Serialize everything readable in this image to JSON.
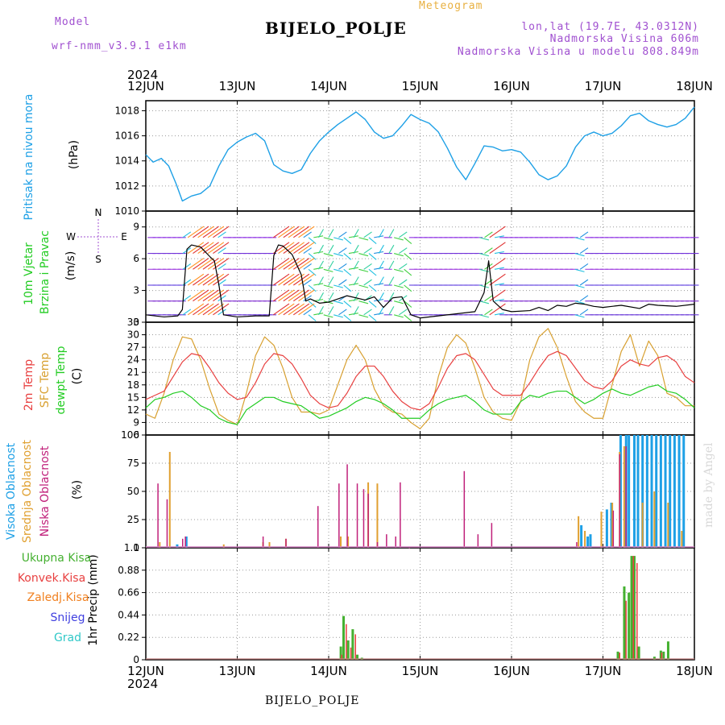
{
  "header": {
    "model_label": "Model",
    "model_name": "wrf-nmm_v3.9.1 e1km",
    "title": "Meteogram",
    "station": "BIJELO_POLJE",
    "lonlat": "lon,lat (19.7E, 43.0312N)",
    "elevation": "Nadmorska Visina 606m",
    "model_elevation": "Nadmorska Visina u modelu 808.849m",
    "credit": "made by Angel",
    "footer_station": "BIJELO_POLJE"
  },
  "colors": {
    "pressure": "#1ea0e6",
    "t2m": "#e84040",
    "sfc": "#d8a030",
    "dewpt": "#22cc22",
    "high": "#1ea0e6",
    "mid": "#e0a030",
    "low": "#c0207a",
    "total": "#44b030",
    "conv": "#e84040",
    "frozen": "#f08020",
    "snow": "#4040e0",
    "hail": "#30c8c8",
    "purple": "#a050d0"
  },
  "chart_data": [
    {
      "type": "line",
      "panel": "pressure",
      "top_year": "2024",
      "bottom_year": "2024",
      "days": [
        "12JUN",
        "13JUN",
        "14JUN",
        "15JUN",
        "16JUN",
        "17JUN",
        "18JUN"
      ],
      "ylabel": "Pritisak na nivou mora",
      "unit": "(hPa)",
      "yticks": [
        1010,
        1012,
        1014,
        1016,
        1018
      ],
      "ylim": [
        1010,
        1018.8
      ],
      "series": [
        {
          "name": "Pritisak na nivou mora",
          "x": [
            0,
            0.08,
            0.17,
            0.25,
            0.33,
            0.4,
            0.5,
            0.6,
            0.7,
            0.8,
            0.9,
            1.0,
            1.1,
            1.2,
            1.3,
            1.4,
            1.5,
            1.6,
            1.7,
            1.8,
            1.9,
            2.0,
            2.1,
            2.2,
            2.3,
            2.4,
            2.5,
            2.6,
            2.7,
            2.8,
            2.9,
            3.0,
            3.1,
            3.2,
            3.3,
            3.4,
            3.5,
            3.6,
            3.7,
            3.8,
            3.9,
            4.0,
            4.1,
            4.2,
            4.3,
            4.4,
            4.5,
            4.6,
            4.7,
            4.8,
            4.9,
            5.0,
            5.1,
            5.2,
            5.3,
            5.4,
            5.5,
            5.6,
            5.7,
            5.8,
            5.9,
            6.0
          ],
          "values": [
            1014.5,
            1013.9,
            1014.2,
            1013.6,
            1012.2,
            1010.8,
            1011.2,
            1011.4,
            1012.0,
            1013.6,
            1014.9,
            1015.5,
            1015.9,
            1016.2,
            1015.6,
            1013.7,
            1013.2,
            1013.0,
            1013.3,
            1014.6,
            1015.6,
            1016.3,
            1016.9,
            1017.4,
            1017.9,
            1017.3,
            1016.3,
            1015.8,
            1016.0,
            1016.8,
            1017.7,
            1017.3,
            1017.0,
            1016.3,
            1015.0,
            1013.5,
            1012.5,
            1013.8,
            1015.2,
            1015.1,
            1014.8,
            1014.9,
            1014.7,
            1013.9,
            1012.9,
            1012.5,
            1012.8,
            1013.6,
            1015.1,
            1016.0,
            1016.3,
            1016.0,
            1016.2,
            1016.8,
            1017.6,
            1017.8,
            1017.2,
            1016.9,
            1016.7,
            1016.9,
            1017.4,
            1018.3
          ]
        }
      ]
    },
    {
      "type": "line",
      "panel": "wind",
      "ylabel": "10m Vjetar Brzina i Pravac",
      "unit": "(m/s)",
      "yticks": [
        0,
        3,
        6,
        9
      ],
      "ylim": [
        0,
        10.5
      ],
      "compass": [
        "N",
        "S",
        "W",
        "E"
      ],
      "series": [
        {
          "name": "10m Vjetar",
          "x": [
            0,
            0.2,
            0.35,
            0.4,
            0.45,
            0.5,
            0.6,
            0.7,
            0.75,
            0.8,
            0.85,
            1.0,
            1.2,
            1.35,
            1.4,
            1.45,
            1.5,
            1.6,
            1.7,
            1.75,
            1.8,
            1.9,
            2.0,
            2.2,
            2.4,
            2.5,
            2.6,
            2.7,
            2.8,
            2.9,
            3.0,
            3.2,
            3.4,
            3.6,
            3.7,
            3.75,
            3.8,
            3.9,
            4.0,
            4.2,
            4.3,
            4.4,
            4.5,
            4.6,
            4.7,
            4.8,
            4.9,
            5.0,
            5.2,
            5.4,
            5.5,
            5.6,
            5.8,
            6.0
          ],
          "values": [
            0.7,
            0.5,
            0.6,
            1.2,
            6.9,
            7.3,
            7.1,
            6.2,
            5.8,
            3.5,
            0.7,
            0.5,
            0.6,
            0.6,
            6.3,
            7.3,
            7.2,
            6.4,
            4.5,
            2.0,
            2.2,
            1.8,
            1.9,
            2.5,
            2.1,
            2.4,
            1.4,
            2.3,
            2.4,
            0.7,
            0.4,
            0.6,
            0.8,
            1.0,
            2.8,
            5.8,
            2.0,
            1.2,
            1.0,
            1.1,
            1.4,
            1.1,
            1.6,
            1.5,
            1.8,
            1.7,
            1.5,
            1.4,
            1.6,
            1.3,
            1.7,
            1.6,
            1.5,
            1.7
          ]
        }
      ]
    },
    {
      "type": "line",
      "panel": "temperature",
      "ylabels": [
        "2m Temp",
        "SFC Temp",
        "dewpt Temp"
      ],
      "unit": "(C)",
      "yticks": [
        6,
        9,
        12,
        15,
        18,
        21,
        24,
        27,
        30,
        33
      ],
      "ylim": [
        6,
        33
      ],
      "series": [
        {
          "name": "2m Temp",
          "x": [
            0,
            0.1,
            0.2,
            0.3,
            0.4,
            0.5,
            0.6,
            0.7,
            0.8,
            0.9,
            1.0,
            1.1,
            1.2,
            1.3,
            1.4,
            1.5,
            1.6,
            1.7,
            1.8,
            1.9,
            2.0,
            2.1,
            2.2,
            2.3,
            2.4,
            2.5,
            2.6,
            2.7,
            2.8,
            2.9,
            3.0,
            3.1,
            3.2,
            3.3,
            3.4,
            3.5,
            3.6,
            3.7,
            3.8,
            3.9,
            4.0,
            4.1,
            4.2,
            4.3,
            4.4,
            4.5,
            4.6,
            4.7,
            4.8,
            4.9,
            5.0,
            5.1,
            5.2,
            5.3,
            5.4,
            5.5,
            5.6,
            5.7,
            5.8,
            5.9,
            6.0
          ],
          "values": [
            14.5,
            15.5,
            16.5,
            20,
            23.5,
            25.5,
            25,
            22,
            18.5,
            16,
            14.5,
            15,
            18.5,
            23,
            25.5,
            25,
            23,
            19.5,
            15.5,
            13.5,
            12.5,
            13,
            16,
            20,
            22.5,
            22.5,
            20,
            16.5,
            14,
            12.5,
            12,
            13.5,
            17.5,
            22,
            25,
            25.5,
            24,
            20.5,
            17,
            15.5,
            15.5,
            15.5,
            18.5,
            22,
            25,
            26,
            25,
            22,
            19,
            17.5,
            17,
            19,
            22.5,
            24,
            23,
            22.5,
            24.5,
            25,
            23.5,
            20,
            18.5
          ]
        },
        {
          "name": "SFC Temp",
          "x": [
            0,
            0.1,
            0.2,
            0.3,
            0.4,
            0.5,
            0.6,
            0.7,
            0.8,
            0.9,
            1.0,
            1.1,
            1.2,
            1.3,
            1.4,
            1.5,
            1.6,
            1.7,
            1.8,
            1.9,
            2.0,
            2.1,
            2.2,
            2.3,
            2.4,
            2.5,
            2.6,
            2.7,
            2.8,
            2.9,
            3.0,
            3.1,
            3.2,
            3.3,
            3.4,
            3.5,
            3.6,
            3.7,
            3.8,
            3.9,
            4.0,
            4.1,
            4.2,
            4.3,
            4.4,
            4.5,
            4.6,
            4.7,
            4.8,
            4.9,
            5.0,
            5.1,
            5.2,
            5.3,
            5.4,
            5.5,
            5.6,
            5.7,
            5.8,
            5.9,
            6.0
          ],
          "values": [
            11,
            10,
            16,
            24,
            29.5,
            29,
            24,
            17,
            11,
            9.5,
            8.5,
            16,
            25,
            29.5,
            27.5,
            22,
            15,
            11.5,
            11.5,
            11,
            12,
            18,
            24,
            27.5,
            24,
            17,
            13,
            11.5,
            11,
            9,
            7.5,
            10,
            20,
            27,
            30,
            28,
            22,
            15,
            11.5,
            10,
            9.5,
            14,
            24,
            29.5,
            31.5,
            27,
            20,
            14,
            11.5,
            10,
            10,
            18,
            26,
            30,
            22.5,
            28.5,
            25,
            16,
            15,
            13,
            13
          ]
        },
        {
          "name": "dewpt Temp",
          "x": [
            0,
            0.1,
            0.2,
            0.3,
            0.4,
            0.5,
            0.6,
            0.7,
            0.8,
            0.9,
            1.0,
            1.1,
            1.2,
            1.3,
            1.4,
            1.5,
            1.6,
            1.7,
            1.8,
            1.9,
            2.0,
            2.1,
            2.2,
            2.3,
            2.4,
            2.5,
            2.6,
            2.7,
            2.8,
            2.9,
            3.0,
            3.1,
            3.2,
            3.3,
            3.4,
            3.5,
            3.6,
            3.7,
            3.8,
            3.9,
            4.0,
            4.1,
            4.2,
            4.3,
            4.4,
            4.5,
            4.6,
            4.7,
            4.8,
            4.9,
            5.0,
            5.1,
            5.2,
            5.3,
            5.4,
            5.5,
            5.6,
            5.7,
            5.8,
            5.9,
            6.0
          ],
          "values": [
            12.5,
            14.5,
            15,
            16,
            16.5,
            15,
            13,
            12,
            10,
            9,
            8.5,
            12,
            13.5,
            15,
            15,
            14,
            13.5,
            13,
            11.5,
            10,
            10.5,
            11.5,
            12.5,
            14,
            15,
            14.5,
            13.5,
            12,
            10,
            10,
            10,
            12,
            13.5,
            14.5,
            15,
            15.5,
            14,
            12,
            11,
            11,
            11,
            14,
            15.5,
            15,
            16,
            16.5,
            16.5,
            15,
            13.5,
            14.5,
            16,
            17,
            16,
            15.5,
            16.5,
            17.5,
            18,
            16.5,
            16,
            14.5,
            12.5
          ]
        }
      ]
    },
    {
      "type": "bar",
      "panel": "clouds",
      "ylabels": [
        "Visoka Oblacnost",
        "Srednja Oblacnost",
        "Niska Oblacnost"
      ],
      "unit": "(%)",
      "yticks": [
        0,
        25,
        50,
        75,
        100
      ],
      "ylim": [
        0,
        100
      ],
      "series": [
        {
          "name": "Visoka Oblacnost",
          "x": [
            0.33,
            0.43,
            4.75,
            4.82,
            4.85,
            5.03,
            5.08,
            5.18,
            5.24,
            5.27,
            5.33,
            5.37,
            5.42,
            5.47,
            5.52,
            5.57,
            5.62,
            5.67,
            5.72,
            5.77,
            5.82,
            5.87
          ],
          "values": [
            3,
            10,
            20,
            10,
            12,
            34,
            40,
            100,
            100,
            100,
            100,
            100,
            100,
            100,
            100,
            100,
            100,
            100,
            100,
            100,
            100,
            100
          ]
        },
        {
          "name": "Srednja Oblacnost",
          "x": [
            0.17,
            0.28,
            0.87,
            1.3,
            1.37,
            1.55,
            2.15,
            2.23,
            2.45,
            2.55,
            4.75,
            4.82,
            5.0,
            5.12,
            5.2,
            5.25,
            5.45,
            5.58,
            5.73,
            5.88
          ],
          "values": [
            5,
            85,
            3,
            5,
            5,
            8,
            10,
            10,
            58,
            57,
            28,
            15,
            32,
            40,
            85,
            90,
            40,
            50,
            40,
            15
          ]
        },
        {
          "name": "Niska Oblacnost",
          "x": [
            0.1,
            0.2,
            0.37,
            0.4,
            1.25,
            1.5,
            1.85,
            2.08,
            2.17,
            2.28,
            2.35,
            2.4,
            2.5,
            2.6,
            2.7,
            2.75,
            2.85,
            3.45,
            3.6,
            3.75,
            4.68,
            5.08,
            5.15,
            5.22
          ],
          "values": [
            57,
            43,
            8,
            10,
            10,
            8,
            37,
            57,
            74,
            57,
            52,
            48,
            5,
            12,
            10,
            58,
            0,
            68,
            12,
            22,
            5,
            33,
            83,
            90
          ]
        }
      ]
    },
    {
      "type": "bar",
      "panel": "precip",
      "ylabels": [
        "Ukupna Kisa",
        "Konvek.Kisa",
        "Zaledj.Kisa",
        "Snijeg",
        "Grad"
      ],
      "ylabel": "1hr Precip",
      "unit": "(mm)",
      "yticks": [
        0,
        0.22,
        0.44,
        0.66,
        0.88,
        1.1
      ],
      "ylim": [
        0,
        1.1
      ],
      "series": [
        {
          "name": "Ukupna Kisa",
          "x": [
            2.12,
            2.15,
            2.2,
            2.25,
            2.3,
            2.35,
            5.15,
            5.22,
            5.27,
            5.3,
            5.33,
            5.38,
            5.55,
            5.62,
            5.65,
            5.7
          ],
          "values": [
            0.13,
            0.43,
            0.19,
            0.3,
            0.05,
            0.02,
            0.08,
            0.72,
            0.66,
            1.02,
            1.02,
            0.13,
            0.03,
            0.09,
            0.08,
            0.18
          ]
        },
        {
          "name": "Konvek.Kisa",
          "x": [
            2.13,
            2.18,
            2.23,
            2.28,
            5.17,
            5.24,
            5.32,
            5.36,
            5.63
          ],
          "values": [
            0.05,
            0.35,
            0.12,
            0.25,
            0.07,
            0.58,
            1.02,
            0.95,
            0.07
          ]
        }
      ]
    }
  ]
}
